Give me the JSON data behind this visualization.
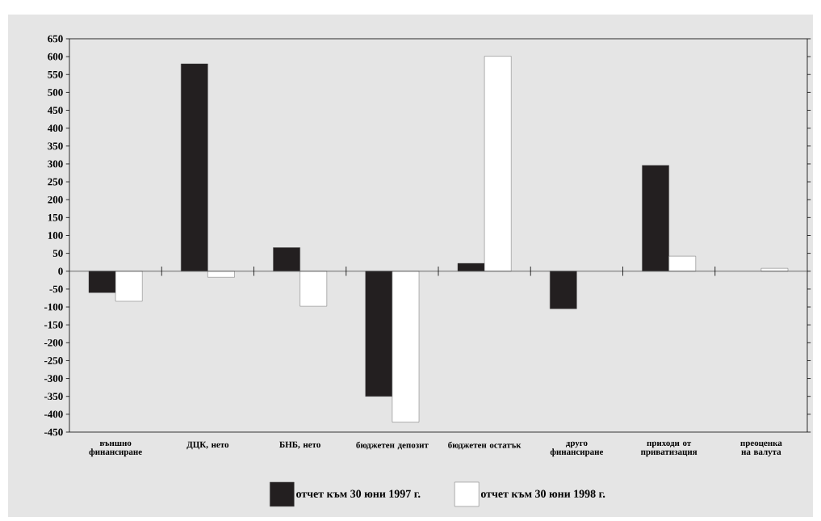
{
  "chart_data": {
    "type": "bar",
    "categories": [
      "външно финансиране",
      "ДЦК, нето",
      "БНБ, нето",
      "бюджетен депозит",
      "бюджетен остатък",
      "друго финансиране",
      "приходи от приватизация",
      "преоценка на валута"
    ],
    "series": [
      {
        "name": "отчет към 30 юни 1997 г.",
        "color": "#231f20",
        "values": [
          -60,
          580,
          66,
          -350,
          22,
          -105,
          296,
          null
        ]
      },
      {
        "name": "отчет към 30 юни 1998 г.",
        "color": "#ffffff",
        "values": [
          -84,
          -17,
          -98,
          -422,
          601,
          null,
          42,
          8
        ]
      }
    ],
    "ylim": [
      -450,
      650
    ],
    "yticks": [
      -450,
      -400,
      -350,
      -300,
      -250,
      -200,
      -150,
      -100,
      -50,
      0,
      50,
      100,
      150,
      200,
      250,
      300,
      350,
      400,
      450,
      500,
      550,
      600,
      650
    ],
    "legend": "bottom"
  }
}
